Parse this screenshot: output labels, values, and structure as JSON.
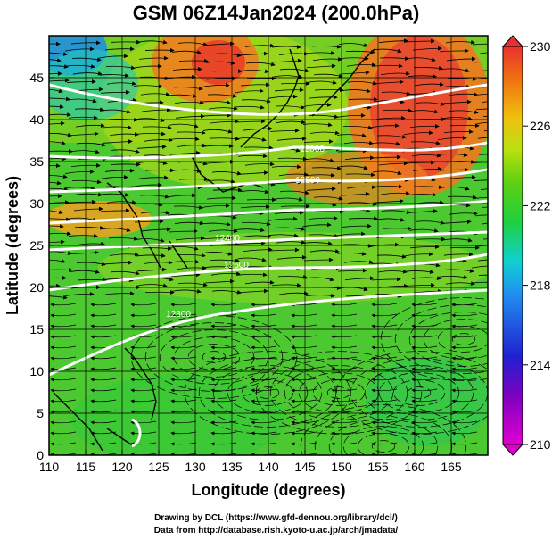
{
  "title": "GSM 06Z14Jan2024 (200.0hPa)",
  "credits": {
    "drawing": "Drawing by DCL (https://www.gfd-dennou.org/library/dcl/)",
    "data": "Data from http://database.rish.kyoto-u.ac.jp/arch/jmadata/"
  },
  "map": {
    "xlabel": "Longitude (degrees)",
    "ylabel": "Latitude (degrees)",
    "xlim": [
      110,
      170
    ],
    "ylim": [
      0,
      50
    ],
    "xticks": [
      110,
      115,
      120,
      125,
      130,
      135,
      140,
      145,
      150,
      155,
      160,
      165
    ],
    "yticks": [
      0,
      5,
      10,
      15,
      20,
      25,
      30,
      35,
      40,
      45
    ],
    "grid": true,
    "colorbar": {
      "min": 210,
      "max": 230,
      "labels": [
        210,
        214,
        218,
        222,
        226,
        230
      ]
    },
    "contour_labels": [
      "12000",
      "12200",
      "12400",
      "12600",
      "12800"
    ]
  }
}
